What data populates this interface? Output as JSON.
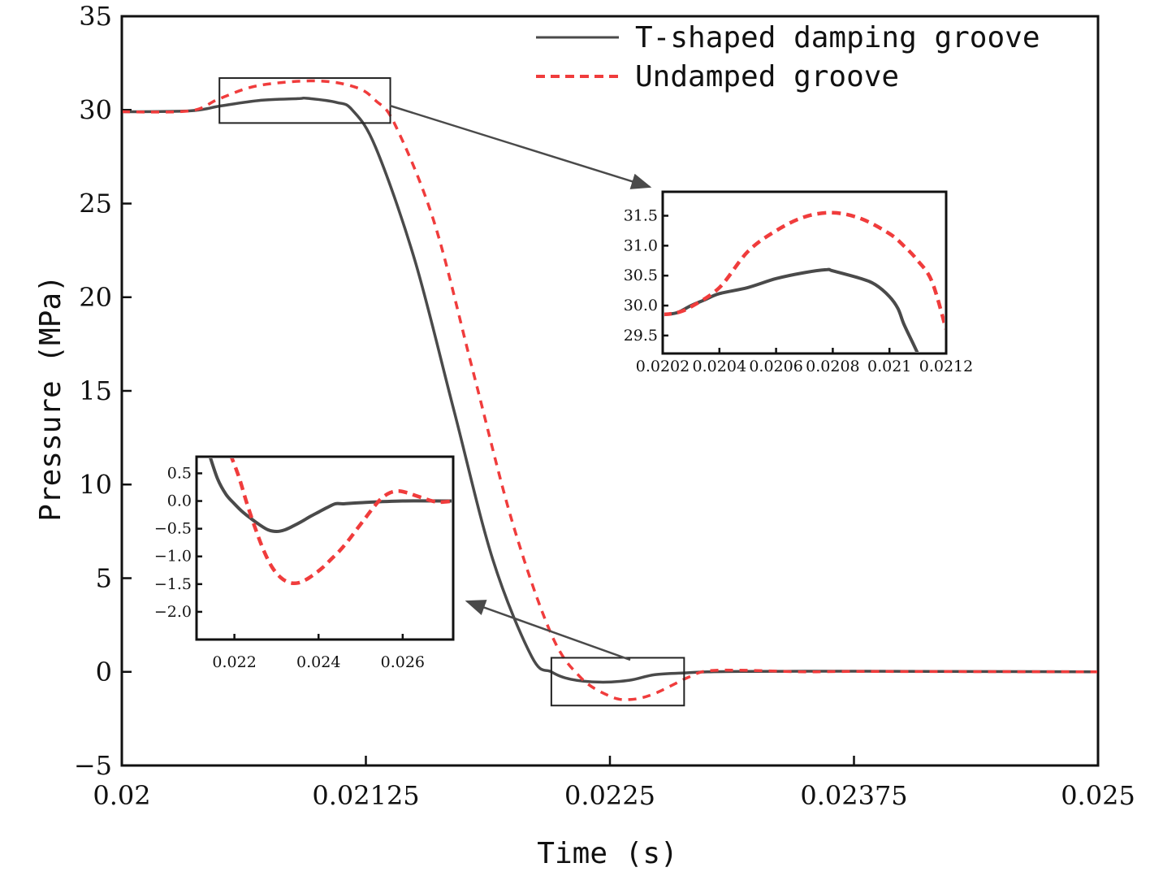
{
  "chart_data": [
    {
      "id": "main",
      "type": "line",
      "title": "",
      "xlabel": "Time (s)",
      "ylabel": "Pressure (MPa)",
      "xlim": [
        0.02,
        0.025
      ],
      "ylim": [
        -5,
        35
      ],
      "xticks": [
        0.02,
        0.02125,
        0.0225,
        0.02375,
        0.025
      ],
      "xtick_labels": [
        "0.02",
        "0.02125",
        "0.0225",
        "0.02375",
        "0.025"
      ],
      "yticks": [
        -5,
        0,
        5,
        10,
        15,
        20,
        25,
        30,
        35
      ],
      "ytick_labels": [
        "−5",
        "0",
        "5",
        "10",
        "15",
        "20",
        "25",
        "30",
        "35"
      ],
      "legend_position": "top-right",
      "series": [
        {
          "name": "T-shaped damping groove",
          "color": "#4a4a4a",
          "style": "solid",
          "x": [
            0.02,
            0.02035,
            0.0205,
            0.0207,
            0.0209,
            0.02095,
            0.0211,
            0.02118,
            0.0213,
            0.0215,
            0.0217,
            0.0219,
            0.0221,
            0.0222,
            0.0223,
            0.02245,
            0.0226,
            0.02273,
            0.0229,
            0.023,
            0.0232,
            0.0235,
            0.0238,
            0.025
          ],
          "y": [
            29.9,
            29.95,
            30.2,
            30.5,
            30.6,
            30.62,
            30.4,
            30.0,
            28.0,
            22.0,
            14.0,
            6.0,
            0.8,
            0.0,
            -0.4,
            -0.55,
            -0.45,
            -0.15,
            -0.05,
            0.0,
            0.02,
            0.03,
            0.03,
            0.0
          ]
        },
        {
          "name": "Undamped groove",
          "color": "#f03c3c",
          "style": "dashed",
          "x": [
            0.02,
            0.02035,
            0.0205,
            0.0207,
            0.021,
            0.0212,
            0.0213,
            0.0214,
            0.0216,
            0.0218,
            0.022,
            0.0222,
            0.02235,
            0.0225,
            0.0226,
            0.02272,
            0.0229,
            0.023,
            0.0232,
            0.0235,
            0.0238,
            0.025
          ],
          "y": [
            29.9,
            29.95,
            30.6,
            31.3,
            31.55,
            31.2,
            30.5,
            29.2,
            24.0,
            16.0,
            8.0,
            2.0,
            -0.3,
            -1.3,
            -1.48,
            -1.2,
            -0.3,
            0.05,
            0.08,
            0.0,
            0.02,
            0.0
          ]
        }
      ],
      "zoom_boxes": [
        {
          "x0": 0.0205,
          "x1": 0.021375,
          "y0": 29.3,
          "y1": 31.7,
          "links_to": "inset_top"
        },
        {
          "x0": 0.0222,
          "x1": 0.02288,
          "y0": -1.8,
          "y1": 0.75,
          "links_to": "inset_bottom"
        }
      ]
    },
    {
      "id": "inset_top",
      "type": "line",
      "xlim": [
        0.0202,
        0.0212
      ],
      "ylim": [
        29.2,
        31.9
      ],
      "xticks": [
        0.0202,
        0.0204,
        0.0206,
        0.0208,
        0.021,
        0.0212
      ],
      "xtick_labels": [
        "0.0202",
        "0.0204",
        "0.0206",
        "0.0208",
        "0.021",
        "0.0212"
      ],
      "yticks": [
        29.5,
        30.0,
        30.5,
        31.0,
        31.5
      ],
      "ytick_labels": [
        "29.5",
        "30.0",
        "30.5",
        "31.0",
        "31.5"
      ],
      "series": [
        {
          "name": "T-shaped damping groove",
          "color": "#4a4a4a",
          "style": "solid",
          "x": [
            0.0202,
            0.02025,
            0.0203,
            0.02035,
            0.0204,
            0.0205,
            0.0206,
            0.0207,
            0.02078,
            0.0208,
            0.0209,
            0.02095,
            0.021,
            0.02103,
            0.02105,
            0.02108,
            0.0211
          ],
          "y": [
            29.85,
            29.88,
            30.0,
            30.1,
            30.2,
            30.3,
            30.45,
            30.55,
            30.6,
            30.58,
            30.45,
            30.35,
            30.15,
            29.95,
            29.7,
            29.4,
            29.2
          ]
        },
        {
          "name": "Undamped groove",
          "color": "#f03c3c",
          "style": "dashed",
          "x": [
            0.0202,
            0.02025,
            0.0203,
            0.0204,
            0.0205,
            0.0206,
            0.0207,
            0.0208,
            0.0209,
            0.021,
            0.02105,
            0.0211,
            0.02115,
            0.0212
          ],
          "y": [
            29.85,
            29.88,
            29.98,
            30.3,
            30.9,
            31.25,
            31.48,
            31.55,
            31.45,
            31.2,
            31.0,
            30.75,
            30.4,
            29.6
          ]
        }
      ]
    },
    {
      "id": "inset_bottom",
      "type": "line",
      "xlim": [
        0.0211,
        0.0272
      ],
      "ylim": [
        -2.5,
        0.8
      ],
      "xticks": [
        0.022,
        0.024,
        0.026
      ],
      "xtick_labels": [
        "0.022",
        "0.024",
        "0.026"
      ],
      "yticks": [
        -2.0,
        -1.5,
        -1.0,
        -0.5,
        0.0,
        0.5
      ],
      "ytick_labels": [
        "−2.0",
        "−1.5",
        "−1.0",
        "−0.5",
        "0.0",
        "0.5"
      ],
      "series": [
        {
          "name": "T-shaped damping groove",
          "color": "#4a4a4a",
          "style": "solid",
          "x": [
            0.0214,
            0.0216,
            0.0218,
            0.022,
            0.0222,
            0.0224,
            0.0226,
            0.0228,
            0.023,
            0.0232,
            0.0234,
            0.0236,
            0.0238,
            0.024,
            0.0242,
            0.0244,
            0.0246,
            0.025,
            0.026,
            0.0272
          ],
          "y": [
            0.85,
            0.4,
            0.12,
            -0.05,
            -0.2,
            -0.32,
            -0.43,
            -0.52,
            -0.55,
            -0.52,
            -0.45,
            -0.37,
            -0.28,
            -0.2,
            -0.12,
            -0.05,
            -0.05,
            -0.03,
            0.0,
            0.0
          ]
        },
        {
          "name": "Undamped groove",
          "color": "#f03c3c",
          "style": "dashed",
          "x": [
            0.0219,
            0.0221,
            0.0223,
            0.0225,
            0.0227,
            0.0229,
            0.0231,
            0.0233,
            0.0235,
            0.0237,
            0.0239,
            0.0241,
            0.0243,
            0.0245,
            0.0247,
            0.0249,
            0.0251,
            0.0253,
            0.0255,
            0.0257,
            0.0259,
            0.0261,
            0.0263,
            0.0265,
            0.0267,
            0.0269,
            0.0272
          ],
          "y": [
            0.85,
            0.45,
            -0.05,
            -0.5,
            -0.9,
            -1.2,
            -1.38,
            -1.47,
            -1.48,
            -1.42,
            -1.32,
            -1.2,
            -1.05,
            -0.9,
            -0.72,
            -0.52,
            -0.32,
            -0.12,
            0.05,
            0.15,
            0.18,
            0.15,
            0.1,
            0.05,
            0.0,
            -0.02,
            0.0
          ]
        }
      ]
    }
  ]
}
